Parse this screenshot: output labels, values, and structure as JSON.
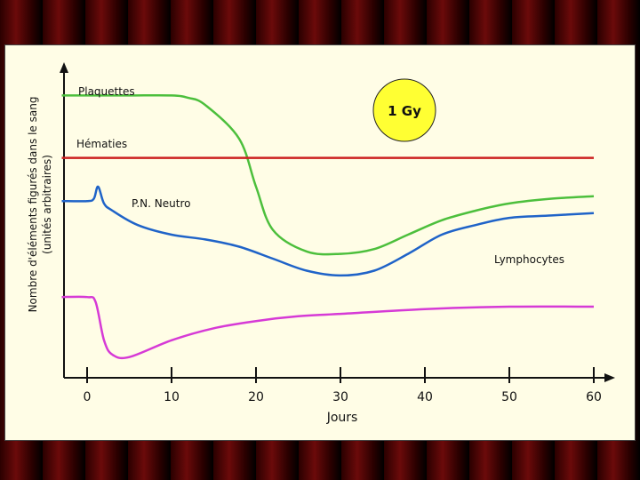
{
  "chart_data": {
    "type": "line",
    "xlabel": "Jours",
    "ylabel_line1": "Nombre d'éléments figurés dans le sang",
    "ylabel_line2": "(unités arbitraires)",
    "xlim": [
      0,
      60
    ],
    "x_ticks": [
      0,
      10,
      20,
      30,
      40,
      50,
      60
    ],
    "grid": false,
    "annotation": "1 Gy",
    "series": [
      {
        "name": "Plaquettes",
        "color": "#4cbf3c",
        "x": [
          -3,
          0,
          5,
          10,
          12,
          14,
          18,
          20,
          22,
          26,
          30,
          34,
          38,
          42,
          46,
          50,
          55,
          60
        ],
        "y": [
          88,
          88,
          88,
          88,
          87,
          84,
          70,
          50,
          32,
          23,
          22,
          24,
          30,
          36,
          40,
          43,
          45,
          46
        ]
      },
      {
        "name": "Hématies",
        "color": "#cc2020",
        "x": [
          -3,
          60
        ],
        "y": [
          62,
          62
        ]
      },
      {
        "name": "P.N. Neutro",
        "color": "#1f63c8",
        "x": [
          -3,
          0,
          0.8,
          1.3,
          2,
          3,
          6,
          10,
          14,
          18,
          22,
          26,
          30,
          34,
          38,
          42,
          46,
          50,
          55,
          60
        ],
        "y": [
          44,
          44,
          45,
          50,
          43,
          40,
          34,
          30,
          28,
          25,
          20,
          15,
          13,
          15,
          22,
          30,
          34,
          37,
          38,
          39
        ]
      },
      {
        "name": "Lymphocytes",
        "color": "#d63ad6",
        "x": [
          -3,
          0,
          1,
          2,
          3,
          5,
          10,
          15,
          20,
          25,
          30,
          40,
          50,
          60
        ],
        "y": [
          4,
          4,
          2,
          -14,
          -20,
          -21,
          -14,
          -9,
          -6,
          -4,
          -3,
          -1,
          0,
          0
        ]
      }
    ],
    "label_positions": [
      "top-left",
      "upper-left",
      "middle",
      "right"
    ]
  }
}
